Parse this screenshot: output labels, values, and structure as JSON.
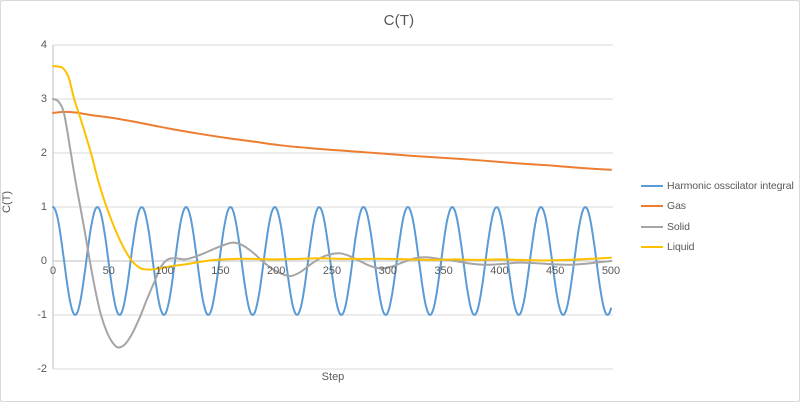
{
  "styles": {
    "background": "#ffffff",
    "border_color": "#d9d9d9",
    "grid_color": "#d9d9d9",
    "axis_color": "#bfbfbf",
    "text_color": "#595959"
  },
  "chart_data": {
    "type": "line",
    "title": "C(T)",
    "xlabel": "Step",
    "ylabel": "C(T)",
    "xlim": [
      0,
      500
    ],
    "ylim": [
      -2,
      4
    ],
    "x_ticks": [
      0,
      50,
      100,
      150,
      200,
      250,
      300,
      350,
      400,
      450,
      500
    ],
    "y_ticks": [
      4,
      3,
      2,
      1,
      0,
      -1,
      -2
    ],
    "grid": "horizontal",
    "legend_position": "right",
    "series": [
      {
        "name": "Harmonic osscilator integral",
        "color": "#5B9BD5",
        "generator": {
          "type": "cosine",
          "amplitude": 1,
          "period": 39.75,
          "phase_deg": 0,
          "x_start": 0,
          "x_end": 500,
          "x_step": 1
        }
      },
      {
        "name": "Gas",
        "color": "#ED7D31",
        "points": [
          [
            0,
            2.74
          ],
          [
            8,
            2.76
          ],
          [
            20,
            2.75
          ],
          [
            35,
            2.7
          ],
          [
            50,
            2.66
          ],
          [
            70,
            2.59
          ],
          [
            90,
            2.51
          ],
          [
            110,
            2.43
          ],
          [
            130,
            2.36
          ],
          [
            155,
            2.28
          ],
          [
            180,
            2.21
          ],
          [
            205,
            2.14
          ],
          [
            230,
            2.09
          ],
          [
            255,
            2.05
          ],
          [
            275,
            2.02
          ],
          [
            295,
            1.99
          ],
          [
            320,
            1.95
          ],
          [
            350,
            1.91
          ],
          [
            385,
            1.86
          ],
          [
            415,
            1.81
          ],
          [
            445,
            1.77
          ],
          [
            475,
            1.72
          ],
          [
            500,
            1.69
          ]
        ]
      },
      {
        "name": "Solid",
        "color": "#A5A5A5",
        "points": [
          [
            0,
            3.0
          ],
          [
            5,
            2.95
          ],
          [
            10,
            2.72
          ],
          [
            16,
            2.0
          ],
          [
            20,
            1.5
          ],
          [
            24,
            1.05
          ],
          [
            28,
            0.6
          ],
          [
            33,
            0.0
          ],
          [
            38,
            -0.55
          ],
          [
            43,
            -1.0
          ],
          [
            48,
            -1.3
          ],
          [
            53,
            -1.5
          ],
          [
            58,
            -1.6
          ],
          [
            64,
            -1.55
          ],
          [
            70,
            -1.38
          ],
          [
            77,
            -1.08
          ],
          [
            84,
            -0.72
          ],
          [
            91,
            -0.38
          ],
          [
            97,
            -0.1
          ],
          [
            103,
            0.03
          ],
          [
            110,
            0.05
          ],
          [
            118,
            0.03
          ],
          [
            126,
            0.07
          ],
          [
            135,
            0.14
          ],
          [
            145,
            0.23
          ],
          [
            155,
            0.31
          ],
          [
            162,
            0.34
          ],
          [
            170,
            0.29
          ],
          [
            179,
            0.16
          ],
          [
            187,
            0.01
          ],
          [
            196,
            -0.14
          ],
          [
            205,
            -0.24
          ],
          [
            213,
            -0.28
          ],
          [
            222,
            -0.2
          ],
          [
            231,
            -0.06
          ],
          [
            241,
            0.07
          ],
          [
            250,
            0.13
          ],
          [
            258,
            0.14
          ],
          [
            266,
            0.09
          ],
          [
            274,
            0.01
          ],
          [
            284,
            -0.09
          ],
          [
            294,
            -0.14
          ],
          [
            304,
            -0.1
          ],
          [
            314,
            -0.02
          ],
          [
            324,
            0.05
          ],
          [
            334,
            0.07
          ],
          [
            346,
            0.04
          ],
          [
            360,
            0.0
          ],
          [
            375,
            -0.05
          ],
          [
            390,
            -0.07
          ],
          [
            405,
            -0.05
          ],
          [
            418,
            -0.03
          ],
          [
            432,
            -0.04
          ],
          [
            448,
            -0.06
          ],
          [
            463,
            -0.07
          ],
          [
            477,
            -0.05
          ],
          [
            490,
            -0.02
          ],
          [
            500,
            0.0
          ]
        ]
      },
      {
        "name": "Liquid",
        "color": "#FFC000",
        "points": [
          [
            0,
            3.61
          ],
          [
            5,
            3.6
          ],
          [
            9,
            3.57
          ],
          [
            14,
            3.4
          ],
          [
            19,
            3.0
          ],
          [
            26,
            2.55
          ],
          [
            34,
            2.0
          ],
          [
            41,
            1.45
          ],
          [
            48,
            1.0
          ],
          [
            55,
            0.62
          ],
          [
            62,
            0.3
          ],
          [
            70,
            0.02
          ],
          [
            78,
            -0.13
          ],
          [
            86,
            -0.16
          ],
          [
            95,
            -0.14
          ],
          [
            105,
            -0.1
          ],
          [
            116,
            -0.07
          ],
          [
            128,
            -0.03
          ],
          [
            140,
            0.01
          ],
          [
            152,
            0.03
          ],
          [
            165,
            0.04
          ],
          [
            180,
            0.04
          ],
          [
            200,
            0.03
          ],
          [
            220,
            0.04
          ],
          [
            240,
            0.05
          ],
          [
            260,
            0.04
          ],
          [
            280,
            0.04
          ],
          [
            300,
            0.04
          ],
          [
            320,
            0.03
          ],
          [
            340,
            0.02
          ],
          [
            360,
            0.03
          ],
          [
            380,
            0.02
          ],
          [
            400,
            0.03
          ],
          [
            420,
            0.02
          ],
          [
            440,
            0.01
          ],
          [
            460,
            0.02
          ],
          [
            480,
            0.04
          ],
          [
            500,
            0.06
          ]
        ]
      }
    ]
  }
}
